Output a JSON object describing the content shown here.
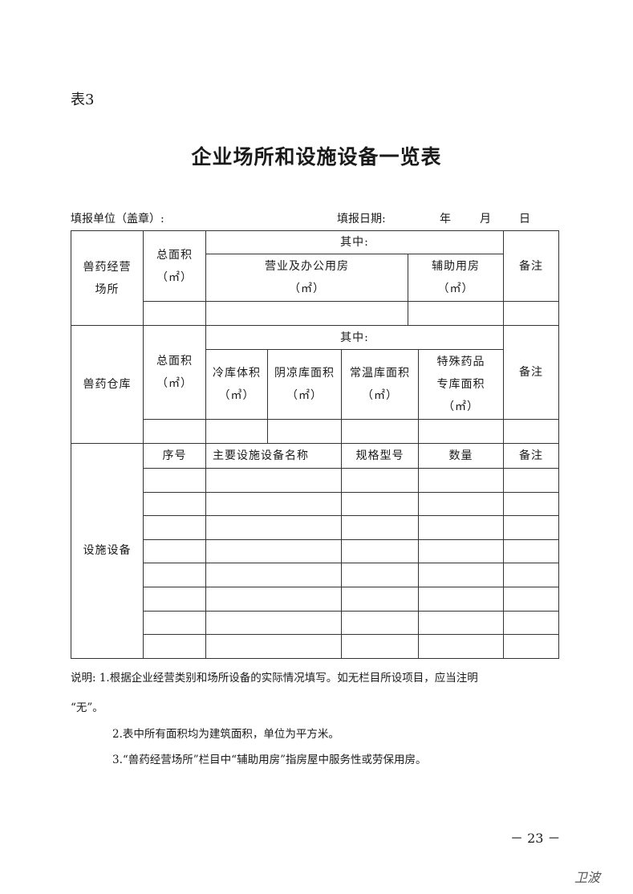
{
  "table_no": "表3",
  "title": "企业场所和设施设备一览表",
  "meta": {
    "unit_label": "填报单位（盖章）:",
    "date_label": "填报日期:",
    "year": "年",
    "month": "月",
    "day": "日"
  },
  "section1": {
    "label": "兽药经营场所",
    "total_area": "总面积",
    "unit": "（㎡）",
    "among": "其中:",
    "business_office": "营业及办公用房",
    "auxiliary": "辅助用房",
    "remark": "备注"
  },
  "section2": {
    "label": "兽药仓库",
    "total_area": "总面积",
    "unit": "（㎡）",
    "among": "其中:",
    "cold_volume": "冷库体积",
    "cold_unit": "（㎥）",
    "cool_area": "阴凉库面积",
    "normal_area": "常温库面积",
    "special_line1": "特殊药品",
    "special_line2": "专库面积",
    "remark": "备注"
  },
  "section3": {
    "label": "设施设备",
    "columns": [
      "序号",
      "主要设施设备名称",
      "规格型号",
      "数量",
      "备注"
    ],
    "blank_rows": 8
  },
  "notes": {
    "n1_line1": "说明: 1.根据企业经营类别和场所设备的实际情况填写。如无栏目所设项目，应当注明",
    "n1_line2": "“无”。",
    "n2": "2.表中所有面积均为建筑面积，单位为平方米。",
    "n3": "3.“兽药经营场所”栏目中“辅助用房”指房屋中服务性或劳保用房。"
  },
  "page_number": "－ 23 －",
  "signature": "卫波"
}
